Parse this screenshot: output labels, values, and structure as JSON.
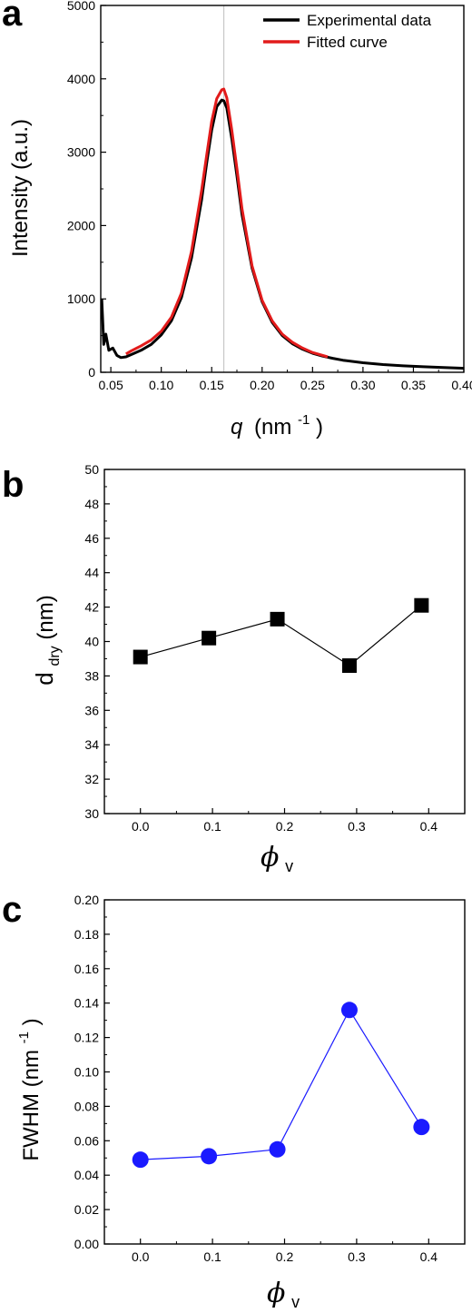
{
  "chart_data": [
    {
      "panel": "a",
      "type": "line",
      "xlabel_var": "q",
      "xlabel_unit_open": "(nm",
      "xlabel_sup": "-1",
      "xlabel_unit_close": ")",
      "ylabel": "Intensity (a.u.)",
      "xlim": [
        0.04,
        0.4
      ],
      "ylim": [
        0,
        5000
      ],
      "xticks": [
        "0.05",
        "0.10",
        "0.15",
        "0.20",
        "0.25",
        "0.30",
        "0.35",
        "0.40"
      ],
      "yticks": [
        "0",
        "1000",
        "2000",
        "3000",
        "4000",
        "5000"
      ],
      "reference_line_x": 0.162,
      "legend_position": "top-right",
      "series": [
        {
          "name": "Experimental data",
          "color": "#000000",
          "x": [
            0.041,
            0.043,
            0.045,
            0.048,
            0.052,
            0.056,
            0.06,
            0.065,
            0.07,
            0.08,
            0.09,
            0.1,
            0.11,
            0.12,
            0.13,
            0.14,
            0.145,
            0.15,
            0.155,
            0.16,
            0.162,
            0.165,
            0.17,
            0.175,
            0.18,
            0.19,
            0.2,
            0.21,
            0.22,
            0.23,
            0.24,
            0.25,
            0.26,
            0.27,
            0.28,
            0.3,
            0.32,
            0.34,
            0.36,
            0.38,
            0.4
          ],
          "y": [
            1000,
            380,
            520,
            300,
            330,
            230,
            200,
            210,
            240,
            300,
            380,
            510,
            700,
            1020,
            1560,
            2350,
            2850,
            3300,
            3620,
            3710,
            3700,
            3600,
            3180,
            2680,
            2150,
            1420,
            960,
            680,
            500,
            390,
            315,
            260,
            220,
            190,
            165,
            130,
            105,
            88,
            75,
            65,
            55
          ]
        },
        {
          "name": "Fitted curve",
          "color": "#e21b1b",
          "x": [
            0.065,
            0.07,
            0.08,
            0.09,
            0.1,
            0.11,
            0.12,
            0.13,
            0.14,
            0.145,
            0.15,
            0.155,
            0.16,
            0.162,
            0.165,
            0.17,
            0.175,
            0.18,
            0.19,
            0.2,
            0.21,
            0.22,
            0.23,
            0.24,
            0.25,
            0.265
          ],
          "y": [
            250,
            290,
            360,
            440,
            560,
            750,
            1080,
            1650,
            2480,
            2960,
            3420,
            3730,
            3850,
            3860,
            3740,
            3300,
            2780,
            2230,
            1450,
            980,
            700,
            520,
            410,
            330,
            270,
            210
          ]
        }
      ]
    },
    {
      "panel": "b",
      "type": "scatter",
      "xlabel": "ϕ",
      "xlabel_sub": "v",
      "ylabel": "d",
      "ylabel_sub": "dry",
      "ylabel_unit": " (nm)",
      "xlim": [
        -0.05,
        0.45
      ],
      "ylim": [
        30,
        50
      ],
      "xticks": [
        "0.0",
        "0.1",
        "0.2",
        "0.3",
        "0.4"
      ],
      "yticks": [
        "30",
        "32",
        "34",
        "36",
        "38",
        "40",
        "42",
        "44",
        "46",
        "48",
        "50"
      ],
      "series": [
        {
          "name": "",
          "color": "#000000",
          "marker": "square",
          "x": [
            0.0,
            0.095,
            0.19,
            0.29,
            0.39
          ],
          "y": [
            39.1,
            40.2,
            41.3,
            38.6,
            42.1
          ]
        }
      ]
    },
    {
      "panel": "c",
      "type": "scatter",
      "xlabel": "ϕ",
      "xlabel_sub": "v",
      "ylabel": "FWHM (nm",
      "ylabel_sup": "-1",
      "ylabel_close": ")",
      "xlim": [
        -0.05,
        0.45
      ],
      "ylim": [
        0,
        0.2
      ],
      "xticks": [
        "0.0",
        "0.1",
        "0.2",
        "0.3",
        "0.4"
      ],
      "yticks": [
        "0.00",
        "0.02",
        "0.04",
        "0.06",
        "0.08",
        "0.10",
        "0.12",
        "0.14",
        "0.16",
        "0.18",
        "0.20"
      ],
      "series": [
        {
          "name": "",
          "color": "#1a1aff",
          "marker": "circle",
          "x": [
            0.0,
            0.095,
            0.19,
            0.29,
            0.39
          ],
          "y": [
            0.049,
            0.051,
            0.055,
            0.136,
            0.068
          ]
        }
      ]
    }
  ]
}
